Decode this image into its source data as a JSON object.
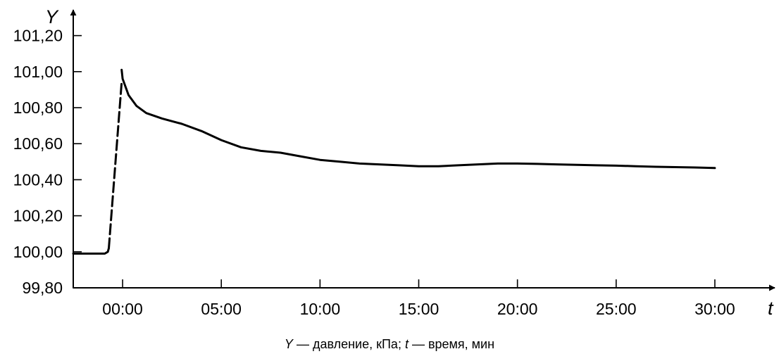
{
  "chart_data": {
    "type": "line",
    "y_axis_name": "Y",
    "x_axis_name": "t",
    "x_unit_printed": "мин",
    "ylim": [
      99.8,
      101.3
    ],
    "xlim": [
      -2.5,
      32.5
    ],
    "y_ticks": [
      {
        "value": 99.8,
        "label": "99,80"
      },
      {
        "value": 100.0,
        "label": "100,00"
      },
      {
        "value": 100.2,
        "label": "100,20"
      },
      {
        "value": 100.4,
        "label": "100,40"
      },
      {
        "value": 100.6,
        "label": "100,60"
      },
      {
        "value": 100.8,
        "label": "100,80"
      },
      {
        "value": 101.0,
        "label": "101,00"
      },
      {
        "value": 101.2,
        "label": "101,20"
      }
    ],
    "x_ticks": [
      {
        "value": 0,
        "label": "00:00"
      },
      {
        "value": 5,
        "label": "05:00"
      },
      {
        "value": 10,
        "label": "10:00"
      },
      {
        "value": 15,
        "label": "15:00"
      },
      {
        "value": 20,
        "label": "20:00"
      },
      {
        "value": 25,
        "label": "25:00"
      },
      {
        "value": 30,
        "label": "30:00"
      }
    ],
    "grid": false,
    "series": [
      {
        "segments": [
          {
            "style": "solid",
            "points": [
              [
                -2.5,
                99.99
              ],
              [
                -0.9,
                99.99
              ],
              [
                -0.75,
                100.0
              ],
              [
                -0.7,
                100.02
              ]
            ]
          },
          {
            "style": "dashed",
            "points": [
              [
                -0.7,
                100.02
              ],
              [
                -0.05,
                100.94
              ]
            ]
          },
          {
            "style": "solid",
            "points": [
              [
                -0.05,
                101.01
              ],
              [
                0.0,
                100.96
              ],
              [
                0.3,
                100.87
              ],
              [
                0.7,
                100.81
              ],
              [
                1.2,
                100.77
              ],
              [
                2.0,
                100.74
              ],
              [
                3.0,
                100.71
              ],
              [
                4.0,
                100.67
              ],
              [
                5.0,
                100.62
              ],
              [
                6.0,
                100.58
              ],
              [
                7.0,
                100.56
              ],
              [
                8.0,
                100.55
              ],
              [
                9.0,
                100.53
              ],
              [
                10.0,
                100.51
              ],
              [
                11.0,
                100.5
              ],
              [
                12.0,
                100.49
              ],
              [
                13.0,
                100.485
              ],
              [
                14.0,
                100.48
              ],
              [
                15.0,
                100.475
              ],
              [
                16.0,
                100.475
              ],
              [
                17.0,
                100.48
              ],
              [
                18.0,
                100.485
              ],
              [
                19.0,
                100.49
              ],
              [
                20.0,
                100.49
              ],
              [
                21.0,
                100.488
              ],
              [
                22.0,
                100.485
              ],
              [
                23.0,
                100.483
              ],
              [
                24.0,
                100.48
              ],
              [
                25.0,
                100.478
              ],
              [
                26.0,
                100.475
              ],
              [
                27.0,
                100.472
              ],
              [
                28.0,
                100.47
              ],
              [
                29.0,
                100.468
              ],
              [
                30.0,
                100.465
              ]
            ]
          }
        ]
      }
    ]
  },
  "caption": {
    "y_symbol": "Y",
    "y_text": " — давление, кПа; ",
    "t_symbol": "t",
    "t_text": " — время, мин"
  }
}
